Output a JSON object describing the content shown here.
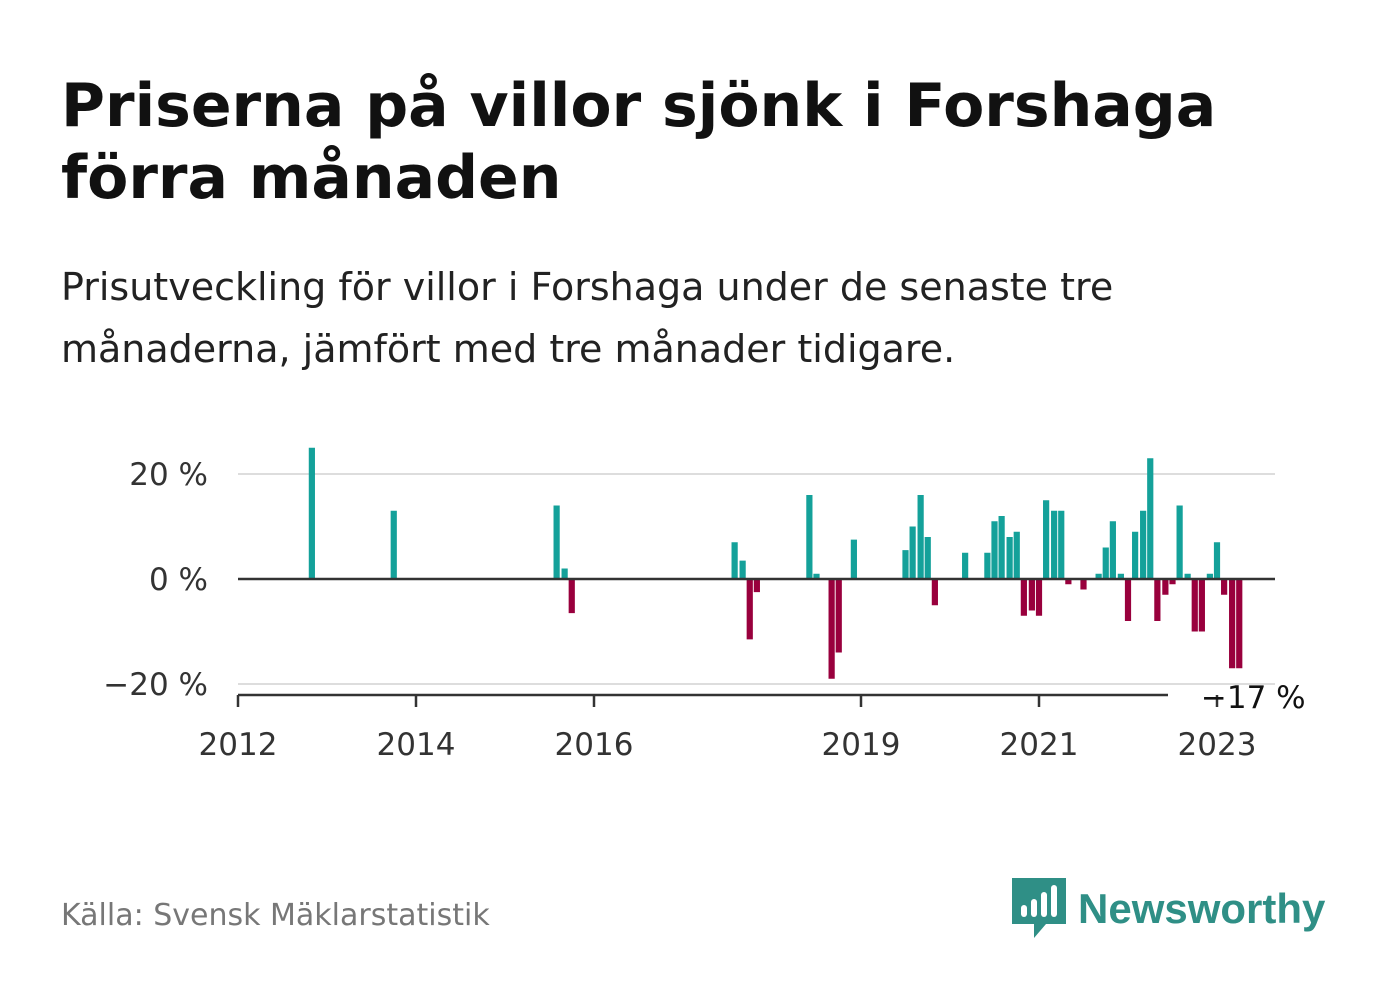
{
  "header": {
    "title": "Priserna på villor sjönk i Forshaga förra månaden",
    "subtitle": "Prisutveckling för villor i Forshaga under de senaste tre månaderna, jämfört med tre månader tidigare."
  },
  "footer": {
    "source": "Källa: Svensk Mäklarstatistik",
    "brand": "Newsworthy",
    "brand_icon": "bar-chart-speech-bubble-icon"
  },
  "colors": {
    "positive": "#14a19a",
    "negative": "#99003d",
    "axis": "#333333",
    "grid": "#dddddd",
    "brand": "#2f8f86"
  },
  "chart_data": {
    "type": "bar",
    "x_unit": "year",
    "xlim": [
      2012,
      2023.6
    ],
    "ylim": [
      -20,
      27
    ],
    "y_ticks": [
      20,
      0,
      -20
    ],
    "y_tick_labels": [
      "20 %",
      "0 %",
      "−20 %"
    ],
    "x_ticks": [
      2012,
      2014,
      2016,
      2019,
      2021,
      2023
    ],
    "x_tick_labels": [
      "2012",
      "2014",
      "2016",
      "2019",
      "2021",
      "2023"
    ],
    "grid": true,
    "last_value_label": "−17 %",
    "x": [
      2012.83,
      2013.75,
      2015.58,
      2015.67,
      2015.75,
      2017.58,
      2017.67,
      2017.75,
      2017.83,
      2018.42,
      2018.5,
      2018.67,
      2018.75,
      2018.92,
      2019.5,
      2019.58,
      2019.67,
      2019.75,
      2019.83,
      2020.17,
      2020.42,
      2020.5,
      2020.58,
      2020.67,
      2020.75,
      2020.83,
      2020.92,
      2021.0,
      2021.08,
      2021.17,
      2021.25,
      2021.33,
      2021.5,
      2021.67,
      2021.75,
      2021.83,
      2021.92,
      2022.0,
      2022.08,
      2022.17,
      2022.25,
      2022.33,
      2022.42,
      2022.5,
      2022.58,
      2022.67,
      2022.75,
      2022.83,
      2022.92,
      2023.0,
      2023.08,
      2023.17,
      2023.25
    ],
    "values": [
      25,
      13,
      14,
      2,
      -6.5,
      7,
      3.5,
      -11.5,
      -2.5,
      16,
      1,
      -19,
      -14,
      7.5,
      5.5,
      10,
      16,
      8,
      -5,
      5,
      5,
      11,
      12,
      8,
      9,
      -7,
      -6,
      -7,
      15,
      13,
      13,
      -1,
      -2,
      1,
      6,
      11,
      1,
      -8,
      9,
      13,
      23,
      -8,
      -3,
      -1,
      14,
      1,
      -10,
      -10,
      1,
      7,
      -3,
      -17,
      -17
    ]
  }
}
